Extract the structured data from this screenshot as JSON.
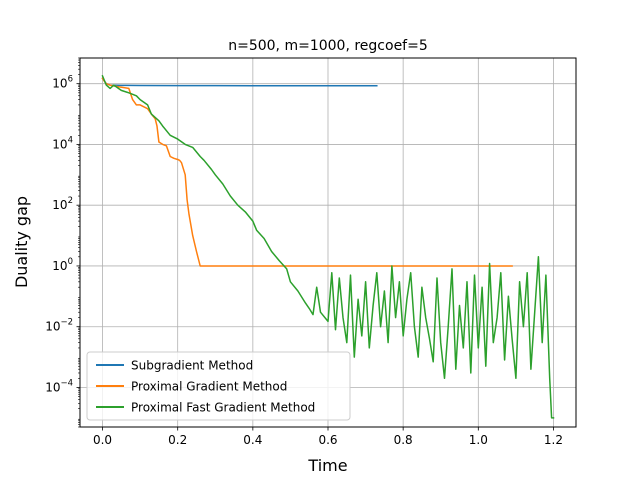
{
  "chart_data": {
    "type": "line",
    "title": "n=500, m=1000, regcoef=5",
    "xlabel": "Time",
    "ylabel": "Duality gap",
    "xlim": [
      -0.06,
      1.26
    ],
    "ylim": [
      5e-06,
      7000000.0
    ],
    "yscale": "log",
    "x_ticks": [
      "0.0",
      "0.2",
      "0.4",
      "0.6",
      "0.8",
      "1.0",
      "1.2"
    ],
    "x_tick_values": [
      0,
      0.2,
      0.4,
      0.6,
      0.8,
      1.0,
      1.2
    ],
    "y_tick_exponents": [
      -4,
      -2,
      0,
      2,
      4,
      6
    ],
    "grid": true,
    "legend_position": "lower-left",
    "series": [
      {
        "name": "Subgradient Method",
        "color": "#1f77b4",
        "x": [
          0.0,
          0.01,
          0.02,
          0.05,
          0.1,
          0.2,
          0.3,
          0.4,
          0.5,
          0.6,
          0.7,
          0.73
        ],
        "y": [
          1500000,
          1000000,
          900000,
          880000,
          870000,
          865000,
          862000,
          860000,
          858000,
          857000,
          856000,
          855000
        ]
      },
      {
        "name": "Proximal Gradient Method",
        "color": "#ff7f0e",
        "x": [
          0.0,
          0.005,
          0.01,
          0.02,
          0.04,
          0.07,
          0.08,
          0.09,
          0.1,
          0.12,
          0.13,
          0.14,
          0.145,
          0.15,
          0.16,
          0.17,
          0.18,
          0.19,
          0.2,
          0.205,
          0.21,
          0.22,
          0.225,
          0.23,
          0.24,
          0.25,
          0.26,
          0.265,
          0.3,
          0.4,
          0.5,
          0.6,
          0.7,
          0.8,
          0.9,
          1.0,
          1.05,
          1.09
        ],
        "y": [
          1500000,
          1200000,
          1000000,
          900000,
          800000,
          700000,
          300000,
          200000,
          200000,
          150000,
          100000,
          70000,
          40000,
          12000,
          10000,
          9000,
          4000,
          3500,
          3200,
          3000,
          2500,
          1000,
          150,
          50,
          10,
          3,
          1,
          1,
          1,
          1,
          1,
          1,
          1,
          1,
          1,
          1,
          1,
          1
        ]
      },
      {
        "name": "Proximal Fast Gradient Method",
        "color": "#2ca02c",
        "x": [
          0.0,
          0.01,
          0.02,
          0.03,
          0.05,
          0.07,
          0.09,
          0.1,
          0.12,
          0.13,
          0.15,
          0.16,
          0.18,
          0.2,
          0.22,
          0.24,
          0.26,
          0.27,
          0.29,
          0.3,
          0.32,
          0.34,
          0.36,
          0.38,
          0.4,
          0.41,
          0.43,
          0.45,
          0.47,
          0.49,
          0.5,
          0.52,
          0.54,
          0.55,
          0.56,
          0.57,
          0.58,
          0.6,
          0.61,
          0.62,
          0.63,
          0.64,
          0.65,
          0.66,
          0.67,
          0.68,
          0.69,
          0.7,
          0.71,
          0.72,
          0.73,
          0.74,
          0.75,
          0.76,
          0.77,
          0.78,
          0.79,
          0.8,
          0.81,
          0.82,
          0.83,
          0.84,
          0.85,
          0.86,
          0.87,
          0.88,
          0.89,
          0.9,
          0.91,
          0.92,
          0.93,
          0.94,
          0.95,
          0.96,
          0.97,
          0.98,
          0.99,
          1.0,
          1.01,
          1.02,
          1.03,
          1.04,
          1.05,
          1.06,
          1.07,
          1.08,
          1.09,
          1.1,
          1.11,
          1.12,
          1.13,
          1.14,
          1.15,
          1.16,
          1.17,
          1.18,
          1.19,
          1.195,
          1.2
        ],
        "y": [
          1800000,
          900000,
          700000,
          900000,
          600000,
          500000,
          400000,
          300000,
          200000,
          100000,
          60000,
          40000,
          20000,
          15000,
          10000,
          8000,
          4000,
          3000,
          1500,
          1000,
          500,
          200,
          100,
          60,
          30,
          15,
          8,
          3,
          1.5,
          0.8,
          0.3,
          0.15,
          0.06,
          0.04,
          0.025,
          0.2,
          0.03,
          0.015,
          0.6,
          0.008,
          0.4,
          0.02,
          0.003,
          0.5,
          0.001,
          0.08,
          0.005,
          0.3,
          0.002,
          0.05,
          0.6,
          0.01,
          0.15,
          0.003,
          1.0,
          0.02,
          0.3,
          0.005,
          0.08,
          0.6,
          0.01,
          0.001,
          0.2,
          0.02,
          0.004,
          0.0007,
          0.4,
          0.003,
          0.0002,
          0.01,
          0.8,
          0.0004,
          0.05,
          0.002,
          0.3,
          0.0003,
          0.5,
          0.002,
          0.2,
          0.0005,
          1.2,
          0.003,
          0.02,
          0.6,
          0.0008,
          0.1,
          0.004,
          0.0002,
          0.3,
          0.01,
          0.6,
          0.0004,
          0.03,
          2.0,
          0.003,
          0.5,
          0.0002,
          1e-05,
          1e-05
        ]
      }
    ]
  }
}
